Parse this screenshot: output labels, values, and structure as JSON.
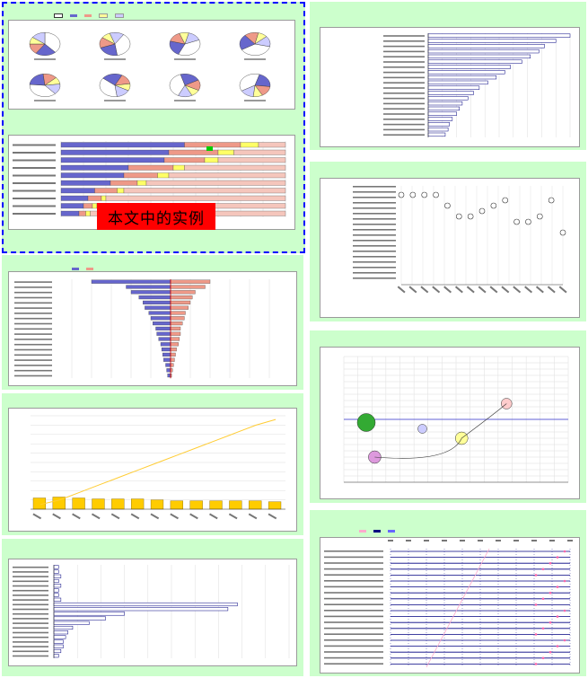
{
  "overlay_label": "本文中的实例",
  "colors": {
    "panel": "#ccffcc",
    "blueBar": "#6666cc",
    "salmon": "#ee9988",
    "gold": "#ffcc00",
    "navy": "#000080",
    "pink": "#ffaacc"
  },
  "chart_data": [
    {
      "type": "pie",
      "title": "",
      "series": [
        {
          "name": "",
          "values": [
            38,
            22,
            15,
            10,
            15
          ]
        }
      ],
      "count": 8
    },
    {
      "type": "bar",
      "title": "",
      "orientation": "horizontal",
      "stacked": true,
      "categories": [
        "",
        "",
        "",
        "",
        "",
        "",
        "",
        "",
        "",
        ""
      ],
      "series": [
        {
          "name": "",
          "values": [
            55,
            48,
            46,
            30,
            28,
            22,
            15,
            12,
            10,
            8
          ]
        },
        {
          "name": "",
          "values": [
            25,
            22,
            18,
            20,
            15,
            12,
            10,
            6,
            4,
            3
          ]
        },
        {
          "name": "",
          "values": [
            8,
            7,
            6,
            5,
            5,
            4,
            3,
            2,
            2,
            2
          ]
        }
      ],
      "xlim": [
        0,
        100
      ]
    },
    {
      "type": "bar",
      "title": "",
      "orientation": "horizontal",
      "diverging": true,
      "categories": [
        "",
        "",
        "",
        "",
        "",
        "",
        "",
        "",
        "",
        "",
        "",
        "",
        "",
        "",
        "",
        "",
        "",
        "",
        ""
      ],
      "series": [
        {
          "name": "",
          "values": [
            -80,
            -45,
            -40,
            -32,
            -28,
            -26,
            -22,
            -20,
            -18,
            -15,
            -14,
            -12,
            -10,
            -9,
            -8,
            -7,
            -5,
            -4,
            -3
          ]
        },
        {
          "name": "",
          "values": [
            40,
            35,
            25,
            22,
            20,
            18,
            15,
            14,
            12,
            10,
            10,
            9,
            8,
            6,
            5,
            4,
            3,
            2,
            1
          ]
        }
      ],
      "xlim": [
        -100,
        100
      ]
    },
    {
      "type": "bar",
      "title": "",
      "categories": [
        "",
        "",
        "",
        "",
        "",
        "",
        "",
        "",
        "",
        "",
        "",
        "",
        ""
      ],
      "values": [
        12,
        13,
        12,
        11,
        11,
        11,
        10,
        9,
        9,
        9,
        9,
        9,
        8
      ],
      "line": [
        5,
        10,
        18,
        26,
        34,
        42,
        50,
        58,
        66,
        74,
        82,
        90,
        96
      ],
      "ylim": [
        0,
        100
      ]
    },
    {
      "type": "bar",
      "title": "",
      "orientation": "horizontal",
      "categories": [
        "",
        "",
        "",
        "",
        "",
        "",
        "",
        "",
        "",
        "",
        "",
        "",
        "",
        "",
        "",
        "",
        "",
        "",
        "",
        ""
      ],
      "values": [
        2,
        2,
        3,
        2,
        3,
        2,
        2,
        3,
        78,
        74,
        30,
        22,
        15,
        8,
        6,
        5,
        4,
        4,
        3,
        2
      ],
      "xlim": [
        0,
        100
      ]
    },
    {
      "type": "bar",
      "title": "",
      "orientation": "horizontal",
      "categories": [
        "",
        "",
        "",
        "",
        "",
        "",
        "",
        "",
        "",
        "",
        "",
        "",
        "",
        "",
        "",
        "",
        "",
        "",
        "",
        ""
      ],
      "values": [
        100,
        90,
        82,
        78,
        72,
        66,
        58,
        54,
        48,
        42,
        36,
        32,
        28,
        24,
        22,
        20,
        17,
        15,
        14,
        12
      ],
      "xlim": [
        0,
        100
      ]
    },
    {
      "type": "scatter",
      "title": "",
      "x": [
        1,
        2,
        3,
        4,
        5,
        6,
        7,
        8,
        9,
        10,
        11,
        12,
        13,
        14,
        15
      ],
      "y": [
        1,
        1,
        1,
        1,
        3,
        5,
        5,
        4,
        3,
        2,
        6,
        6,
        5,
        2,
        8
      ],
      "ylim": [
        0,
        20
      ]
    },
    {
      "type": "scatter",
      "title": "",
      "bubbles": [
        {
          "x": 8,
          "y": -1,
          "r": 20
        },
        {
          "x": 28,
          "y": -3,
          "r": 10
        },
        {
          "x": 42,
          "y": -6,
          "r": 14
        },
        {
          "x": 11,
          "y": -12,
          "r": 14
        },
        {
          "x": 58,
          "y": 5,
          "r": 12
        }
      ],
      "xlim": [
        0,
        80
      ],
      "ylim": [
        -20,
        20
      ]
    },
    {
      "type": "line",
      "title": "",
      "categories": [
        "",
        "",
        "",
        "",
        "",
        "",
        "",
        "",
        "",
        "",
        "",
        "",
        "",
        "",
        "",
        "",
        "",
        "",
        "",
        ""
      ],
      "x": [
        "",
        "",
        "",
        "",
        "",
        "",
        "",
        "",
        "",
        "",
        ""
      ],
      "xlim": [
        0,
        10
      ]
    }
  ]
}
